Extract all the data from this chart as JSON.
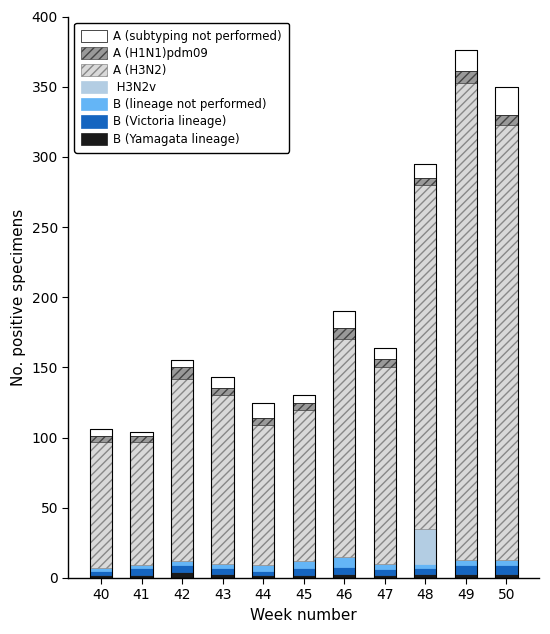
{
  "weeks": [
    40,
    41,
    42,
    43,
    44,
    45,
    46,
    47,
    48,
    49,
    50
  ],
  "segments": {
    "B_Yamagata": [
      2,
      2,
      4,
      3,
      2,
      2,
      3,
      2,
      3,
      3,
      3
    ],
    "B_Victoria": [
      3,
      5,
      5,
      4,
      3,
      5,
      5,
      4,
      4,
      6,
      6
    ],
    "B_lineage": [
      2,
      2,
      3,
      3,
      4,
      5,
      7,
      4,
      3,
      4,
      4
    ],
    "H3N2v": [
      0,
      0,
      0,
      0,
      0,
      0,
      0,
      0,
      25,
      0,
      0
    ],
    "A_H3N2": [
      90,
      88,
      130,
      120,
      100,
      108,
      155,
      140,
      245,
      340,
      310
    ],
    "A_H1N1": [
      4,
      4,
      8,
      5,
      5,
      5,
      8,
      6,
      5,
      8,
      7
    ],
    "A_subtyping": [
      5,
      3,
      5,
      8,
      11,
      5,
      12,
      8,
      10,
      15,
      20
    ]
  },
  "colors": {
    "B_Yamagata": "#1a1a1a",
    "B_Victoria": "#1565c0",
    "B_lineage": "#64b5f6",
    "H3N2v": "#b3cde3",
    "A_H3N2": "#d9d9d9",
    "A_H1N1": "#999999",
    "A_subtyping": "#ffffff"
  },
  "hatches": {
    "B_Yamagata": "",
    "B_Victoria": "",
    "B_lineage": "",
    "H3N2v": "",
    "A_H3N2": "////",
    "A_H1N1": "////",
    "A_subtyping": ""
  },
  "hatch_colors": {
    "B_Yamagata": "#1a1a1a",
    "B_Victoria": "#1565c0",
    "B_lineage": "#64b5f6",
    "H3N2v": "#b3cde3",
    "A_H3N2": "#888888",
    "A_H1N1": "#444444",
    "A_subtyping": "#000000"
  },
  "legend_labels": [
    "A (subtyping not performed)",
    "A (H1N1)pdm09",
    "A (H3N2)",
    " H3N2v",
    "B (lineage not performed)",
    "B (Victoria lineage)",
    "B (Yamagata lineage)"
  ],
  "legend_keys": [
    "A_subtyping",
    "A_H1N1",
    "A_H3N2",
    "H3N2v",
    "B_lineage",
    "B_Victoria",
    "B_Yamagata"
  ],
  "xlabel": "Week number",
  "ylabel": "No. positive specimens",
  "ylim": [
    0,
    400
  ],
  "yticks": [
    0,
    50,
    100,
    150,
    200,
    250,
    300,
    350,
    400
  ],
  "bar_width": 0.55,
  "edgecolor": "#1a1a1a",
  "background_color": "#ffffff"
}
